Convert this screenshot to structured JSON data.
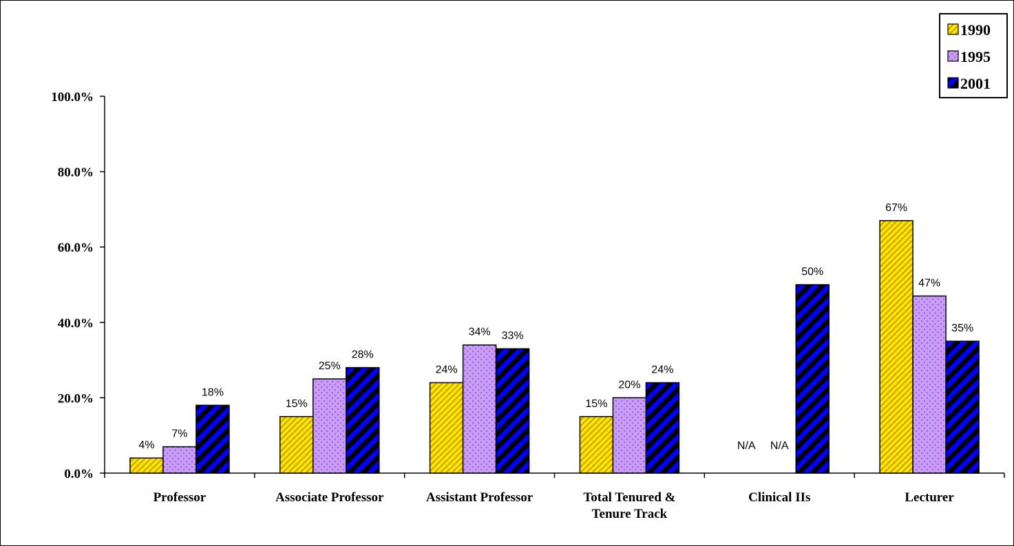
{
  "chart_data": {
    "type": "bar",
    "categories": [
      [
        "Professor"
      ],
      [
        "Associate Professor"
      ],
      [
        "Assistant Professor"
      ],
      [
        "Total Tenured &",
        "Tenure Track"
      ],
      [
        "Clinical IIs"
      ],
      [
        "Lecturer"
      ]
    ],
    "series": [
      {
        "name": "1990",
        "values": [
          4,
          15,
          24,
          15,
          null,
          67
        ],
        "labels": [
          "4%",
          "15%",
          "24%",
          "15%",
          "N/A",
          "67%"
        ],
        "color": "#FFE600",
        "pattern": "diagonal-stripes-yellow"
      },
      {
        "name": "1995",
        "values": [
          7,
          25,
          34,
          20,
          null,
          47
        ],
        "labels": [
          "7%",
          "25%",
          "34%",
          "20%",
          "N/A",
          "47%"
        ],
        "color": "#CC99FF",
        "pattern": "dotted-lavender"
      },
      {
        "name": "2001",
        "values": [
          18,
          28,
          33,
          24,
          50,
          35
        ],
        "labels": [
          "18%",
          "28%",
          "33%",
          "24%",
          "50%",
          "35%"
        ],
        "color": "#0000FF",
        "pattern": "blue-black-stripes"
      }
    ],
    "ylim": [
      0,
      100
    ],
    "yticks": [
      "0.0%",
      "20.0%",
      "40.0%",
      "60.0%",
      "80.0%",
      "100.0%"
    ],
    "title": "",
    "xlabel": "",
    "ylabel": "",
    "grid": false,
    "legend_position": "top-right"
  }
}
